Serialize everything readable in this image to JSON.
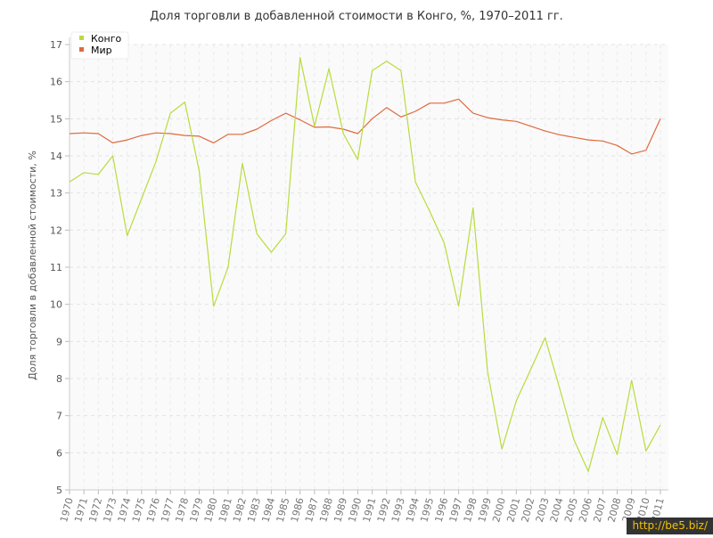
{
  "chart_data": {
    "type": "line",
    "title": "Доля торговли в добавленной стоимости в Конго, %, 1970–2011 гг.",
    "xlabel": "",
    "ylabel": "Доля торговли в добавленной стоимости, %",
    "ylim": [
      5,
      17
    ],
    "yticks": [
      "5",
      "6",
      "7",
      "8",
      "9",
      "10",
      "11",
      "12",
      "13",
      "14",
      "15",
      "16",
      "17"
    ],
    "grid": true,
    "legend_position": "top-left",
    "x": [
      "1970",
      "1971",
      "1972",
      "1973",
      "1974",
      "1975",
      "1976",
      "1977",
      "1978",
      "1979",
      "1980",
      "1981",
      "1982",
      "1983",
      "1984",
      "1985",
      "1986",
      "1987",
      "1988",
      "1989",
      "1990",
      "1991",
      "1992",
      "1993",
      "1994",
      "1995",
      "1996",
      "1997",
      "1998",
      "1999",
      "2000",
      "2001",
      "2002",
      "2003",
      "2004",
      "2005",
      "2006",
      "2007",
      "2008",
      "2009",
      "2010",
      "2011"
    ],
    "series": [
      {
        "name": "Конго",
        "color": "#b8dc3c",
        "values": [
          13.3,
          13.55,
          13.5,
          14.0,
          11.85,
          12.85,
          13.85,
          15.15,
          15.45,
          13.6,
          9.95,
          11.0,
          13.8,
          11.9,
          11.4,
          11.9,
          16.65,
          14.8,
          16.35,
          14.6,
          13.9,
          16.3,
          16.55,
          16.3,
          13.3,
          12.5,
          11.65,
          9.95,
          12.6,
          8.2,
          6.1,
          7.4,
          8.25,
          9.1,
          7.75,
          6.35,
          5.5,
          6.95,
          5.95,
          7.95,
          6.05,
          6.75
        ]
      },
      {
        "name": "Мир",
        "color": "#e0693e",
        "values": [
          14.6,
          14.62,
          14.6,
          14.35,
          14.43,
          14.55,
          14.62,
          14.6,
          14.55,
          14.53,
          14.35,
          14.58,
          14.58,
          14.72,
          14.95,
          15.15,
          14.97,
          14.77,
          14.78,
          14.72,
          14.6,
          15.0,
          15.3,
          15.05,
          15.2,
          15.42,
          15.42,
          15.53,
          15.15,
          15.03,
          14.97,
          14.93,
          14.8,
          14.67,
          14.57,
          14.5,
          14.43,
          14.4,
          14.28,
          14.05,
          14.15,
          15.0
        ]
      }
    ]
  },
  "watermark": "http://be5.biz/"
}
